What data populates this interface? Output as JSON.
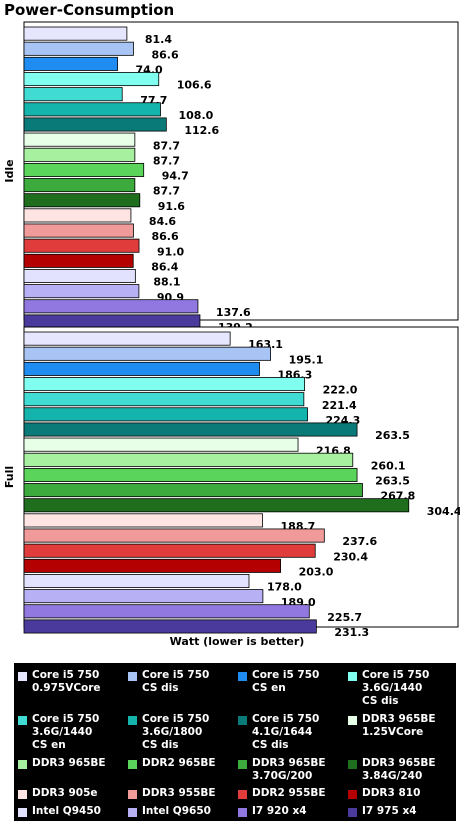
{
  "title": "Power-Consumption",
  "xlabel": "Watt (lower is better)",
  "chart_data": {
    "type": "bar",
    "orientation": "horizontal",
    "title": "Power-Consumption",
    "xlabel": "Watt (lower is better)",
    "ylabel": "",
    "xlim": [
      0,
      305
    ],
    "grid": false,
    "legend_position": "bottom",
    "groups": [
      "Idle",
      "Full"
    ],
    "series": [
      {
        "name": "Core i5 750\n0.975VCore",
        "color": "#e6e6ff",
        "values": [
          81.4,
          163.1
        ]
      },
      {
        "name": "Core i5 750\nCS dis",
        "color": "#a8c4f4",
        "values": [
          86.6,
          195.1
        ]
      },
      {
        "name": "Core i5 750\nCS en",
        "color": "#1e8cf0",
        "values": [
          74.0,
          186.3
        ]
      },
      {
        "name": "Core i5 750\n3.6G/1440\nCS dis",
        "color": "#80fff0",
        "values": [
          106.6,
          222.0
        ]
      },
      {
        "name": "Core i5 750\n3.6G/1440\nCS en",
        "color": "#40dcd4",
        "values": [
          77.7,
          221.4
        ]
      },
      {
        "name": "Core i5 750\n3.6G/1800\nCS dis",
        "color": "#14b4ac",
        "values": [
          108.0,
          224.3
        ]
      },
      {
        "name": "Core i5 750\n4.1G/1644\nCS dis",
        "color": "#0a7a78",
        "values": [
          112.6,
          263.5
        ]
      },
      {
        "name": "DDR3 965BE\n1.25VCore",
        "color": "#e6ffe6",
        "values": [
          87.7,
          216.8
        ]
      },
      {
        "name": "DDR3 965BE",
        "color": "#a6f0a0",
        "values": [
          87.7,
          260.1
        ]
      },
      {
        "name": "DDR2 965BE",
        "color": "#5ad45a",
        "values": [
          94.7,
          263.5
        ]
      },
      {
        "name": "DDR3 965BE\n3.70G/200",
        "color": "#3caa3c",
        "values": [
          87.7,
          267.8
        ]
      },
      {
        "name": "DDR3 965BE\n3.84G/240",
        "color": "#1e6e1e",
        "values": [
          91.6,
          304.4
        ]
      },
      {
        "name": "DDR3 905e",
        "color": "#ffe4e4",
        "values": [
          84.6,
          188.7
        ]
      },
      {
        "name": "DDR3 955BE",
        "color": "#f09a9a",
        "values": [
          86.6,
          237.6
        ]
      },
      {
        "name": "DDR2 955BE",
        "color": "#e03c3c",
        "values": [
          91.0,
          230.4
        ]
      },
      {
        "name": "DDR3 810",
        "color": "#b40000",
        "values": [
          86.4,
          203.0
        ]
      },
      {
        "name": "Intel Q9450",
        "color": "#e2e2ff",
        "values": [
          88.1,
          178.0
        ]
      },
      {
        "name": "Intel Q9650",
        "color": "#b8b0f4",
        "values": [
          90.9,
          189.0
        ]
      },
      {
        "name": "I7 920 x4",
        "color": "#9078e0",
        "values": [
          137.6,
          225.7
        ]
      },
      {
        "name": "I7 975 x4",
        "color": "#4a3a9c",
        "values": [
          139.2,
          231.3
        ]
      }
    ]
  }
}
